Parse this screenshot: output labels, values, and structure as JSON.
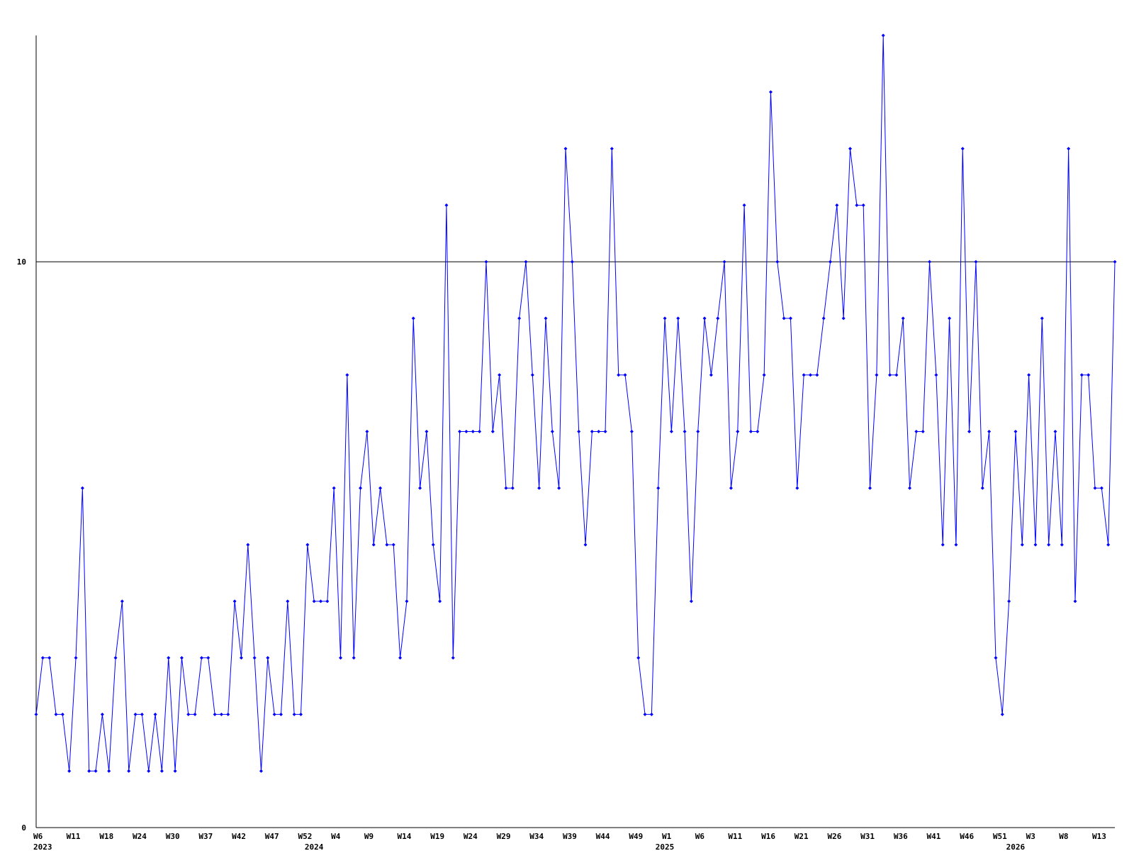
{
  "chart_data": {
    "type": "line",
    "categories": [
      "W6",
      null,
      null,
      null,
      null,
      "W11",
      null,
      null,
      null,
      null,
      "W18",
      null,
      null,
      null,
      null,
      "W24",
      null,
      null,
      null,
      null,
      "W30",
      null,
      null,
      null,
      null,
      "W37",
      null,
      null,
      null,
      null,
      "W42",
      null,
      null,
      null,
      null,
      "W47",
      null,
      null,
      null,
      null,
      "W52",
      null,
      null,
      null,
      null,
      "W4",
      null,
      null,
      null,
      null,
      "W9",
      null,
      null,
      null,
      null,
      "W14",
      null,
      null,
      null,
      null,
      "W19",
      null,
      null,
      null,
      null,
      "W24",
      null,
      null,
      null,
      null,
      "W29",
      null,
      null,
      null,
      null,
      "W34",
      null,
      null,
      null,
      null,
      "W39",
      null,
      null,
      null,
      null,
      "W44",
      null,
      null,
      null,
      null,
      "W49",
      null,
      null,
      null,
      null,
      "W1",
      null,
      null,
      null,
      null,
      "W6",
      null,
      null,
      null,
      null,
      "W11",
      null,
      null,
      null,
      null,
      "W16",
      null,
      null,
      null,
      null,
      "W21",
      null,
      null,
      null,
      null,
      "W26",
      null,
      null,
      null,
      null,
      "W31",
      null,
      null,
      null,
      null,
      "W36",
      null,
      null,
      null,
      null,
      "W41",
      null,
      null,
      null,
      null,
      "W46",
      null,
      null,
      null,
      null,
      "W51",
      null,
      null,
      null,
      null,
      "W3",
      null,
      null,
      null,
      null,
      "W8",
      null,
      null,
      null,
      null,
      "W13",
      null,
      null,
      null
    ],
    "category_years": [
      "2023",
      null,
      null,
      null,
      null,
      null,
      null,
      null,
      null,
      null,
      null,
      null,
      null,
      null,
      null,
      null,
      null,
      null,
      null,
      null,
      null,
      null,
      null,
      null,
      null,
      null,
      null,
      null,
      null,
      null,
      null,
      null,
      null,
      null,
      null,
      null,
      null,
      null,
      null,
      null,
      null,
      "2024",
      null,
      null,
      null,
      null,
      null,
      null,
      null,
      null,
      null,
      null,
      null,
      null,
      null,
      null,
      null,
      null,
      null,
      null,
      null,
      null,
      null,
      null,
      null,
      null,
      null,
      null,
      null,
      null,
      null,
      null,
      null,
      null,
      null,
      null,
      null,
      null,
      null,
      null,
      null,
      null,
      null,
      null,
      null,
      null,
      null,
      null,
      null,
      null,
      null,
      null,
      null,
      null,
      "2025",
      null,
      null,
      null,
      null,
      null,
      null,
      null,
      null,
      null,
      null,
      null,
      null,
      null,
      null,
      null,
      null,
      null,
      null,
      null,
      null,
      null,
      null,
      null,
      null,
      null,
      null,
      null,
      null,
      null,
      null,
      null,
      null,
      null,
      null,
      null,
      null,
      null,
      null,
      null,
      null,
      null,
      null,
      null,
      null,
      null,
      null,
      null,
      null,
      null,
      null,
      null,
      null,
      "2026",
      null,
      null,
      null,
      null,
      null,
      null,
      null,
      null,
      null,
      null,
      null,
      null,
      null,
      null,
      null,
      null
    ],
    "series": [
      {
        "color": "#0000ff",
        "values": [
          2,
          3,
          3,
          2,
          2,
          1,
          3,
          6,
          1,
          1,
          2,
          1,
          3,
          4,
          1,
          2,
          2,
          1,
          2,
          1,
          3,
          1,
          3,
          2,
          2,
          3,
          3,
          2,
          2,
          2,
          4,
          3,
          5,
          3,
          1,
          3,
          2,
          2,
          4,
          2,
          2,
          5,
          4,
          4,
          4,
          6,
          3,
          8,
          3,
          6,
          7,
          5,
          6,
          5,
          5,
          3,
          4,
          9,
          6,
          7,
          5,
          4,
          11,
          3,
          7,
          7,
          7,
          7,
          10,
          7,
          8,
          6,
          6,
          9,
          10,
          8,
          6,
          9,
          7,
          6,
          12,
          10,
          7,
          5,
          7,
          7,
          7,
          12,
          8,
          8,
          7,
          3,
          2,
          2,
          6,
          9,
          7,
          9,
          7,
          4,
          7,
          9,
          8,
          9,
          10,
          6,
          7,
          11,
          7,
          7,
          8,
          13,
          10,
          9,
          9,
          6,
          8,
          8,
          8,
          9,
          10,
          11,
          9,
          12,
          11,
          11,
          6,
          8,
          14,
          8,
          8,
          9,
          6,
          7,
          7,
          10,
          8,
          5,
          9,
          5,
          12,
          7,
          10,
          6,
          7,
          3,
          2,
          4,
          7,
          5,
          8,
          5,
          9,
          5,
          7,
          5,
          12,
          4,
          8,
          8,
          6,
          6,
          5,
          10
        ]
      }
    ],
    "ylim": [
      0,
      14
    ],
    "yticks": [
      0,
      10
    ],
    "grid": true
  }
}
